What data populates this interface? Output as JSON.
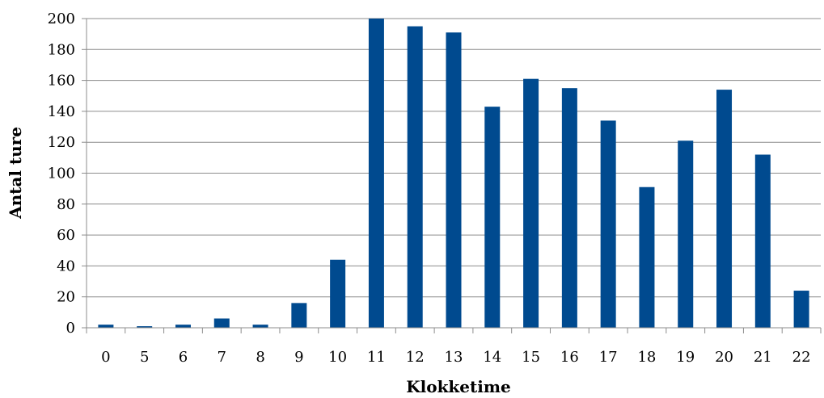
{
  "chart_data": {
    "type": "bar",
    "title": "",
    "xlabel": "Klokketime",
    "ylabel": "Antal ture",
    "categories": [
      "0",
      "5",
      "6",
      "7",
      "8",
      "9",
      "10",
      "11",
      "12",
      "13",
      "14",
      "15",
      "16",
      "17",
      "18",
      "19",
      "20",
      "21",
      "22"
    ],
    "values": [
      2,
      1,
      2,
      6,
      2,
      16,
      44,
      200,
      195,
      191,
      143,
      161,
      155,
      134,
      91,
      121,
      154,
      112,
      24
    ],
    "ylim": [
      0,
      200
    ],
    "yticks": [
      "0",
      "20",
      "40",
      "60",
      "80",
      "100",
      "120",
      "140",
      "160",
      "180",
      "200"
    ],
    "grid": true,
    "legend": "none",
    "colors": {
      "bar": "#004a8f",
      "grid": "#8c8c8c",
      "axis": "#8c8c8c"
    }
  }
}
